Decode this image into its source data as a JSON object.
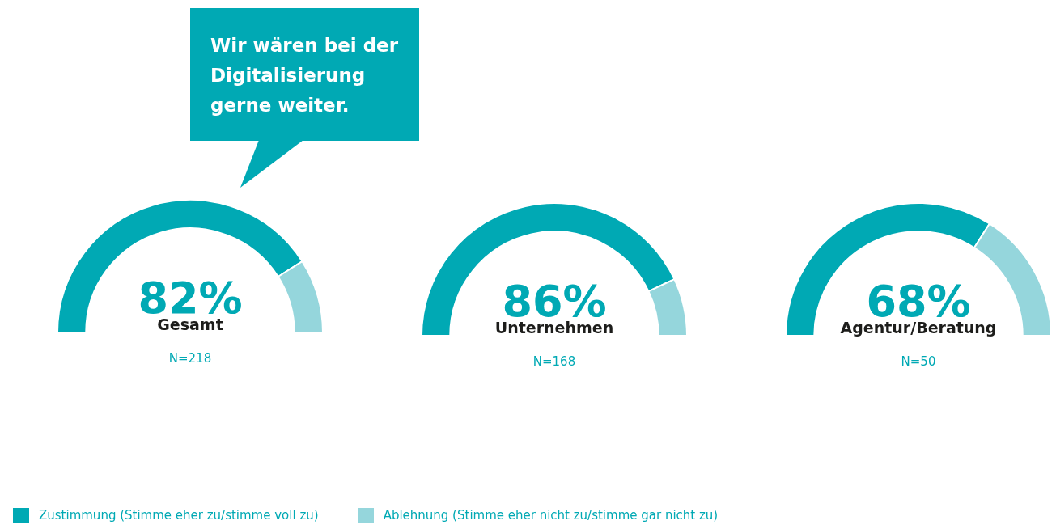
{
  "chart_data": [
    {
      "type": "donut",
      "title": "Gesamt",
      "categories": [
        "Zustimmung (Stimme eher zu/stimme voll zu)",
        "Ablehnung (Stimme eher nicht zu/stimme gar nicht zu)"
      ],
      "values": [
        82,
        18
      ],
      "colors": [
        "#00a9b4",
        "#95d6dc"
      ],
      "value_labels": [
        "82%",
        null
      ],
      "annotations": [
        "Wir wären bei der Digitalisierung gerne weiter.",
        "N=218"
      ],
      "legend": "bottom"
    },
    {
      "type": "donut",
      "title": "Unternehmen",
      "categories": [
        null,
        null
      ],
      "values": [
        86,
        14
      ],
      "colors": [
        "#00a9b4",
        "#95d6dc"
      ],
      "value_labels": [
        "86%",
        null
      ],
      "annotations": [
        "N=168"
      ]
    },
    {
      "type": "donut",
      "title": "Agentur/Beratung",
      "categories": [
        null,
        null
      ],
      "values": [
        68,
        32
      ],
      "colors": [
        "#00a9b4",
        "#95d6dc"
      ],
      "value_labels": [
        "68%",
        null
      ],
      "annotations": [
        "N=50"
      ]
    }
  ]
}
